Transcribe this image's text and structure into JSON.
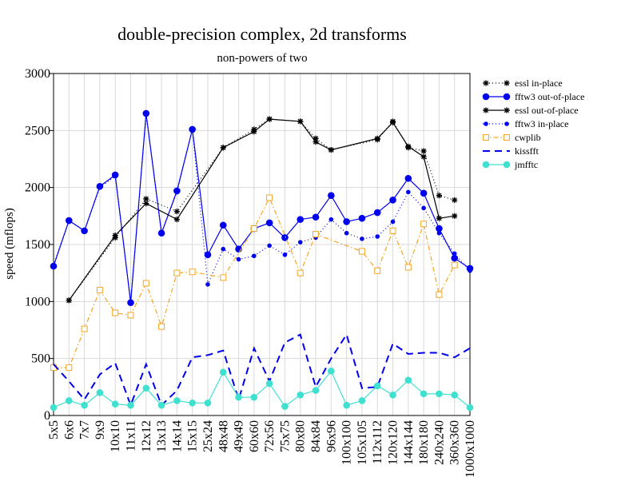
{
  "chart_data": {
    "type": "line",
    "title": "double-precision complex, 2d transforms",
    "subtitle": "non-powers of two",
    "xlabel": "",
    "ylabel": "speed (mflops)",
    "ylim": [
      0,
      3000
    ],
    "yticks": [
      0,
      500,
      1000,
      1500,
      2000,
      2500,
      3000
    ],
    "grid": true,
    "legend_position": "right",
    "categories": [
      "5x5",
      "6x6",
      "7x7",
      "9x9",
      "10x10",
      "11x11",
      "12x12",
      "13x13",
      "14x14",
      "15x15",
      "25x24",
      "48x48",
      "49x49",
      "60x60",
      "72x56",
      "75x75",
      "80x80",
      "84x84",
      "96x96",
      "100x100",
      "105x105",
      "112x112",
      "120x120",
      "144x144",
      "180x180",
      "240x240",
      "360x360",
      "1000x1000"
    ],
    "series": [
      {
        "name": "essl in-place",
        "color": "#000000",
        "dash": "1,3",
        "marker": "star",
        "values": [
          null,
          1010,
          null,
          null,
          1560,
          null,
          1900,
          null,
          1790,
          null,
          null,
          2350,
          null,
          2510,
          2600,
          null,
          2580,
          2430,
          2330,
          null,
          null,
          2420,
          2580,
          2350,
          2320,
          1930,
          1890,
          null
        ]
      },
      {
        "name": "fftw3 out-of-place",
        "color": "#0000ee",
        "dash": "",
        "marker": "circle",
        "values": [
          1310,
          1710,
          1620,
          2010,
          2110,
          990,
          2650,
          1600,
          1970,
          2510,
          1410,
          1670,
          1460,
          1640,
          1690,
          1560,
          1720,
          1740,
          1930,
          1700,
          1730,
          1780,
          1890,
          2080,
          1950,
          1640,
          1380,
          1290
        ]
      },
      {
        "name": "essl out-of-place",
        "color": "#000000",
        "dash": "",
        "marker": "star",
        "values": [
          null,
          1010,
          null,
          null,
          1580,
          null,
          1860,
          null,
          1720,
          null,
          null,
          2350,
          null,
          2490,
          2600,
          null,
          2580,
          2400,
          2330,
          null,
          null,
          2430,
          2570,
          2360,
          2270,
          1730,
          1750,
          null
        ]
      },
      {
        "name": "fftw3 in-place",
        "color": "#0000ee",
        "dash": "1,3",
        "marker": "smalldot",
        "values": [
          1320,
          1710,
          1620,
          2000,
          2100,
          1000,
          2640,
          1600,
          1960,
          2510,
          1150,
          1460,
          1370,
          1400,
          1490,
          1410,
          1520,
          1560,
          1720,
          1600,
          1550,
          1570,
          1700,
          1960,
          1820,
          1600,
          1420,
          1270
        ]
      },
      {
        "name": "cwplib",
        "color": "#f5a623",
        "dash": "6,3,1.5,3",
        "marker": "square",
        "values": [
          420,
          420,
          760,
          1100,
          900,
          880,
          1160,
          780,
          1250,
          1260,
          null,
          1210,
          null,
          1640,
          1910,
          null,
          1250,
          1590,
          null,
          null,
          1440,
          1270,
          1620,
          1300,
          1680,
          1060,
          1320,
          null
        ]
      },
      {
        "name": "kissfft",
        "color": "#0000ee",
        "dash": "9,6",
        "marker": "none",
        "values": [
          450,
          300,
          140,
          360,
          460,
          90,
          450,
          90,
          220,
          510,
          530,
          570,
          140,
          590,
          300,
          640,
          710,
          250,
          500,
          710,
          240,
          250,
          630,
          540,
          550,
          550,
          510,
          590
        ]
      },
      {
        "name": "jmfftc",
        "color": "#40e0d0",
        "dash": "",
        "marker": "circle",
        "values": [
          70,
          130,
          90,
          200,
          100,
          90,
          240,
          90,
          130,
          110,
          110,
          380,
          160,
          160,
          280,
          80,
          180,
          220,
          390,
          90,
          130,
          260,
          180,
          310,
          190,
          190,
          180,
          70
        ]
      }
    ]
  }
}
